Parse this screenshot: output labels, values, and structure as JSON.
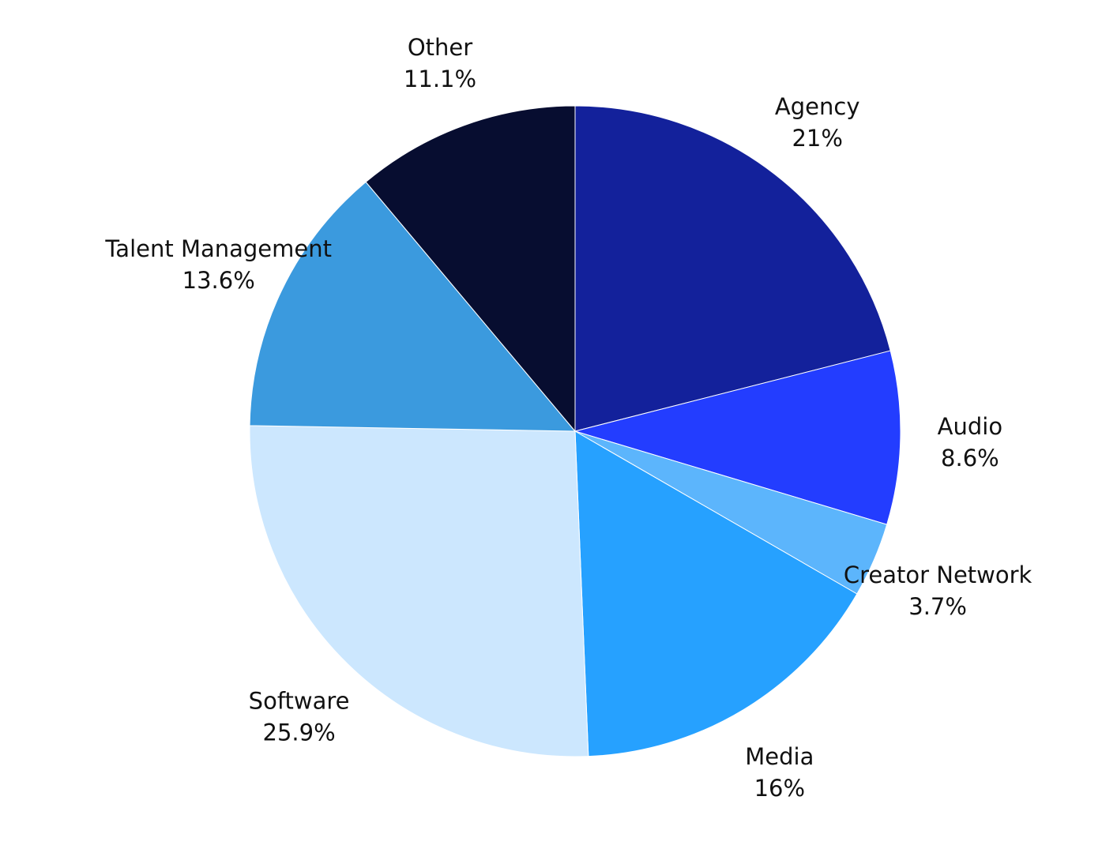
{
  "chart_data": {
    "type": "pie",
    "title": "",
    "start_angle_deg": 0,
    "direction": "clockwise",
    "legend": "none",
    "slices": [
      {
        "label": "Agency",
        "value": 21,
        "value_label": "21%",
        "color": "#13219B"
      },
      {
        "label": "Audio",
        "value": 8.6,
        "value_label": "8.6%",
        "color": "#233DFF"
      },
      {
        "label": "Creator Network",
        "value": 3.7,
        "value_label": "3.7%",
        "color": "#5CB5FC"
      },
      {
        "label": "Media",
        "value": 16,
        "value_label": "16%",
        "color": "#26A1FF"
      },
      {
        "label": "Software",
        "value": 25.9,
        "value_label": "25.9%",
        "color": "#CCE7FE"
      },
      {
        "label": "Talent Management",
        "value": 13.6,
        "value_label": "13.6%",
        "color": "#3B9ADE"
      },
      {
        "label": "Other",
        "value": 11.1,
        "value_label": "11.1%",
        "color": "#070D30"
      }
    ]
  }
}
